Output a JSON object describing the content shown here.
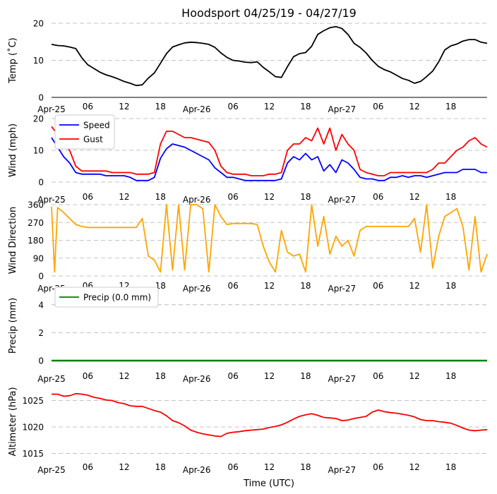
{
  "chart_data": {
    "title": "Hoodsport 04/25/19 - 04/27/19",
    "xlabel": "Time (UTC)",
    "x_unit": "hours since Apr-25 00:00 UTC",
    "x_range": [
      0,
      72
    ],
    "x_ticks": [
      {
        "x": 0,
        "label": "Apr-25"
      },
      {
        "x": 6,
        "label": "06"
      },
      {
        "x": 12,
        "label": "12"
      },
      {
        "x": 18,
        "label": "18"
      },
      {
        "x": 24,
        "label": "Apr-26"
      },
      {
        "x": 30,
        "label": "06"
      },
      {
        "x": 36,
        "label": "12"
      },
      {
        "x": 42,
        "label": "18"
      },
      {
        "x": 48,
        "label": "Apr-27"
      },
      {
        "x": 54,
        "label": "06"
      },
      {
        "x": 60,
        "label": "12"
      },
      {
        "x": 66,
        "label": "18"
      }
    ],
    "panels": [
      {
        "id": "temp",
        "type": "line",
        "ylabel": "Temp ($^\\circ$C)",
        "ylabel_display": "Temp (˚C)",
        "ylim": [
          0,
          20
        ],
        "yticks": [
          0,
          10,
          20
        ],
        "grid": true,
        "series": [
          {
            "name": "Temperature",
            "color": "#000000",
            "x": [
              0,
              1,
              2,
              3,
              4,
              5,
              6,
              7,
              8,
              9,
              10,
              11,
              12,
              13,
              14,
              15,
              16,
              17,
              18,
              19,
              20,
              21,
              22,
              23,
              24,
              25,
              26,
              27,
              28,
              29,
              30,
              31,
              32,
              33,
              34,
              35,
              36,
              37,
              38,
              39,
              40,
              41,
              42,
              43,
              44,
              45,
              46,
              47,
              48,
              49,
              50,
              51,
              52,
              53,
              54,
              55,
              56,
              57,
              58,
              59,
              60,
              61,
              62,
              63,
              64,
              65,
              66,
              67,
              68,
              69,
              70,
              71,
              72
            ],
            "y": [
              14.3,
              14.0,
              13.9,
              13.6,
              13.2,
              10.7,
              8.8,
              7.8,
              6.8,
              6.1,
              5.6,
              5.0,
              4.3,
              3.8,
              3.2,
              3.4,
              5.2,
              6.6,
              9.2,
              11.8,
              13.6,
              14.2,
              14.7,
              14.9,
              14.8,
              14.6,
              14.3,
              13.5,
              12.0,
              10.8,
              10.0,
              9.8,
              9.5,
              9.4,
              9.6,
              8.1,
              6.9,
              5.6,
              5.4,
              8.3,
              11.0,
              11.8,
              12.1,
              13.8,
              17.0,
              18.0,
              18.8,
              19.1,
              18.6,
              17.0,
              14.6,
              13.5,
              12.0,
              10.0,
              8.4,
              7.5,
              6.9,
              6.0,
              5.1,
              4.6,
              3.8,
              4.3,
              5.6,
              7.1,
              9.6,
              12.8,
              13.9,
              14.4,
              15.2,
              15.6,
              15.6,
              14.9,
              14.6
            ]
          }
        ]
      },
      {
        "id": "wind",
        "type": "line",
        "ylabel": "Wind (mph)",
        "ylim": [
          0,
          20
        ],
        "yticks": [
          0,
          10,
          20
        ],
        "grid": true,
        "legend": "top-left",
        "series": [
          {
            "name": "Speed",
            "color": "#0000ff",
            "x": [
              0,
              1,
              2,
              3,
              4,
              5,
              6,
              7,
              8,
              9,
              10,
              11,
              12,
              13,
              14,
              15,
              16,
              17,
              18,
              19,
              20,
              21,
              22,
              23,
              24,
              25,
              26,
              27,
              28,
              29,
              30,
              31,
              32,
              33,
              34,
              35,
              36,
              37,
              38,
              39,
              40,
              41,
              42,
              43,
              44,
              45,
              46,
              47,
              48,
              49,
              50,
              51,
              52,
              53,
              54,
              55,
              56,
              57,
              58,
              59,
              60,
              61,
              62,
              63,
              64,
              65,
              66,
              67,
              68,
              69,
              70,
              71,
              72
            ],
            "y": [
              14,
              11,
              8,
              6,
              3,
              2.5,
              2.5,
              2.5,
              2.5,
              2,
              2,
              2,
              2,
              1.5,
              0.5,
              0.5,
              0.5,
              1.5,
              7.5,
              10.5,
              12,
              11.5,
              11,
              10,
              9,
              8,
              7,
              4.5,
              3,
              1.5,
              1.5,
              1,
              0.5,
              0.5,
              0.5,
              0.5,
              0.5,
              0.5,
              1,
              6,
              8,
              7,
              9,
              7,
              8,
              3.5,
              5.5,
              3,
              7,
              6,
              4,
              1.5,
              1,
              1,
              0.5,
              0.5,
              1.5,
              1.5,
              2,
              1.5,
              2,
              2,
              1.5,
              2,
              2.5,
              3,
              3,
              3,
              4,
              4,
              4,
              3,
              3
            ]
          },
          {
            "name": "Gust",
            "color": "#ff0000",
            "x": [
              0,
              1,
              2,
              3,
              4,
              5,
              6,
              7,
              8,
              9,
              10,
              11,
              12,
              13,
              14,
              15,
              16,
              17,
              18,
              19,
              20,
              21,
              22,
              23,
              24,
              25,
              26,
              27,
              28,
              29,
              30,
              31,
              32,
              33,
              34,
              35,
              36,
              37,
              38,
              39,
              40,
              41,
              42,
              43,
              44,
              45,
              46,
              47,
              48,
              49,
              50,
              51,
              52,
              53,
              54,
              55,
              56,
              57,
              58,
              59,
              60,
              61,
              62,
              63,
              64,
              65,
              66,
              67,
              68,
              69,
              70,
              71,
              72
            ],
            "y": [
              17.5,
              15,
              12,
              10,
              5,
              3.5,
              3.5,
              3.5,
              3.5,
              3.5,
              3,
              3,
              3,
              3,
              2.5,
              2.5,
              2.5,
              3,
              12,
              16,
              16,
              15,
              14,
              14,
              13.5,
              13,
              12.5,
              10,
              5,
              3,
              2.5,
              2.5,
              2.5,
              2,
              2,
              2,
              2.5,
              2.5,
              3,
              10,
              12,
              12,
              14,
              13,
              17,
              12,
              17,
              10,
              15,
              12,
              10,
              4,
              3,
              2.5,
              2,
              2,
              3,
              3,
              3,
              3,
              3,
              3,
              3,
              4,
              6,
              6,
              8,
              10,
              11,
              13,
              14,
              12,
              11
            ]
          }
        ]
      },
      {
        "id": "direction",
        "type": "line",
        "ylabel": "Wind Direction",
        "ylim": [
          0,
          360
        ],
        "yticks": [
          0,
          90,
          180,
          270,
          360
        ],
        "grid": true,
        "series": [
          {
            "name": "Wind Direction",
            "color": "#ffa500",
            "x": [
              0,
              0.5,
              1,
              2,
              3,
              4,
              5,
              6,
              7,
              8,
              9,
              10,
              11,
              12,
              13,
              14,
              15,
              16,
              17,
              18,
              19,
              20,
              21,
              22,
              23,
              24,
              25,
              26,
              27,
              28,
              29,
              30,
              31,
              32,
              33,
              34,
              35,
              36,
              37,
              38,
              39,
              40,
              41,
              42,
              43,
              44,
              45,
              46,
              47,
              48,
              49,
              50,
              51,
              52,
              53,
              54,
              55,
              56,
              57,
              58,
              59,
              60,
              61,
              62,
              63,
              64,
              65,
              66,
              67,
              68,
              69,
              70,
              71,
              72
            ],
            "y": [
              350,
              20,
              345,
              320,
              290,
              260,
              250,
              245,
              245,
              245,
              245,
              245,
              245,
              245,
              245,
              245,
              290,
              100,
              80,
              20,
              360,
              30,
              360,
              30,
              360,
              360,
              340,
              20,
              360,
              300,
              260,
              265,
              265,
              265,
              265,
              260,
              150,
              70,
              20,
              230,
              120,
              100,
              110,
              20,
              360,
              150,
              300,
              110,
              200,
              150,
              180,
              100,
              230,
              250,
              250,
              250,
              250,
              250,
              250,
              250,
              250,
              290,
              120,
              360,
              40,
              200,
              300,
              320,
              340,
              250,
              30,
              300,
              20,
              110
            ]
          }
        ]
      },
      {
        "id": "precip",
        "type": "line",
        "ylabel": "Precip (mm)",
        "ylim": [
          0,
          5
        ],
        "yticks": [
          0,
          2,
          4
        ],
        "grid": true,
        "legend": "top-left",
        "series": [
          {
            "name": "Precip (0.0 mm)",
            "color": "#008000",
            "x": [
              0,
              72
            ],
            "y": [
              0,
              0
            ]
          }
        ]
      },
      {
        "id": "altimeter",
        "type": "line",
        "ylabel": "Altimeter (hPa)",
        "ylim": [
          1014,
          1028
        ],
        "yticks": [
          1015,
          1020,
          1025
        ],
        "grid": true,
        "series": [
          {
            "name": "Altimeter",
            "color": "#ff0000",
            "x": [
              0,
              1,
              2,
              3,
              4,
              5,
              6,
              7,
              8,
              9,
              10,
              11,
              12,
              13,
              14,
              15,
              16,
              17,
              18,
              19,
              20,
              21,
              22,
              23,
              24,
              25,
              26,
              27,
              28,
              29,
              30,
              31,
              32,
              33,
              34,
              35,
              36,
              37,
              38,
              39,
              40,
              41,
              42,
              43,
              44,
              45,
              46,
              47,
              48,
              49,
              50,
              51,
              52,
              53,
              54,
              55,
              56,
              57,
              58,
              59,
              60,
              61,
              62,
              63,
              64,
              65,
              66,
              67,
              68,
              69,
              70,
              71,
              72
            ],
            "y": [
              1026.2,
              1026.2,
              1025.8,
              1025.9,
              1026.3,
              1026.2,
              1026.0,
              1025.6,
              1025.4,
              1025.1,
              1025.0,
              1024.6,
              1024.4,
              1024.0,
              1023.9,
              1023.9,
              1023.5,
              1023.1,
              1022.8,
              1022.1,
              1021.2,
              1020.8,
              1020.2,
              1019.4,
              1019.0,
              1018.7,
              1018.5,
              1018.3,
              1018.2,
              1018.8,
              1019.0,
              1019.1,
              1019.3,
              1019.4,
              1019.5,
              1019.6,
              1019.9,
              1020.1,
              1020.4,
              1020.9,
              1021.5,
              1022.0,
              1022.3,
              1022.5,
              1022.2,
              1021.8,
              1021.7,
              1021.6,
              1021.2,
              1021.3,
              1021.6,
              1021.8,
              1022.0,
              1022.8,
              1023.2,
              1022.9,
              1022.7,
              1022.6,
              1022.4,
              1022.2,
              1021.9,
              1021.4,
              1021.2,
              1021.2,
              1021.0,
              1020.9,
              1020.7,
              1020.3,
              1019.8,
              1019.4,
              1019.3,
              1019.4,
              1019.5
            ]
          }
        ]
      }
    ]
  }
}
